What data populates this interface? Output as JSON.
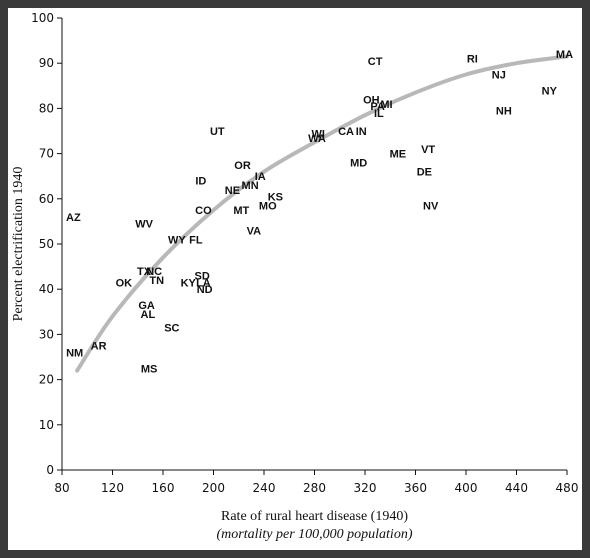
{
  "chart_data": {
    "type": "scatter",
    "xlabel": "Rate of rural heart disease (1940)",
    "xlabel_sub": "(mortality per 100,000 population)",
    "ylabel": "Percent electrification 1940",
    "xlim": [
      80,
      480
    ],
    "ylim": [
      0,
      100
    ],
    "x_ticks": [
      80,
      120,
      160,
      200,
      240,
      280,
      320,
      360,
      400,
      440,
      480
    ],
    "y_ticks": [
      0,
      10,
      20,
      30,
      40,
      50,
      60,
      70,
      80,
      90,
      100
    ],
    "grid": false,
    "trend_color": "#b8b8b8",
    "trend_curve": [
      {
        "x": 92,
        "y": 22
      },
      {
        "x": 120,
        "y": 34
      },
      {
        "x": 160,
        "y": 47
      },
      {
        "x": 200,
        "y": 57.5
      },
      {
        "x": 240,
        "y": 66
      },
      {
        "x": 280,
        "y": 72.5
      },
      {
        "x": 320,
        "y": 78.5
      },
      {
        "x": 360,
        "y": 83.5
      },
      {
        "x": 400,
        "y": 87.5
      },
      {
        "x": 440,
        "y": 90
      },
      {
        "x": 480,
        "y": 91.5
      }
    ],
    "points": [
      {
        "label": "AZ",
        "x": 89,
        "y": 56
      },
      {
        "label": "NM",
        "x": 90,
        "y": 26
      },
      {
        "label": "AR",
        "x": 109,
        "y": 27.5
      },
      {
        "label": "OK",
        "x": 129,
        "y": 41.5
      },
      {
        "label": "MS",
        "x": 149,
        "y": 22.5
      },
      {
        "label": "GA",
        "x": 147,
        "y": 36.5
      },
      {
        "label": "AL",
        "x": 148,
        "y": 34.5
      },
      {
        "label": "SC",
        "x": 167,
        "y": 31.5
      },
      {
        "label": "TX",
        "x": 145,
        "y": 44
      },
      {
        "label": "NC",
        "x": 153,
        "y": 44
      },
      {
        "label": "TN",
        "x": 155,
        "y": 42
      },
      {
        "label": "WV",
        "x": 145,
        "y": 54.5
      },
      {
        "label": "WY",
        "x": 171,
        "y": 51
      },
      {
        "label": "FL",
        "x": 186,
        "y": 51
      },
      {
        "label": "KY",
        "x": 180,
        "y": 41.5
      },
      {
        "label": "LA",
        "x": 192,
        "y": 41.5
      },
      {
        "label": "SD",
        "x": 191,
        "y": 43
      },
      {
        "label": "ND",
        "x": 193,
        "y": 40
      },
      {
        "label": "CO",
        "x": 192,
        "y": 57.5
      },
      {
        "label": "ID",
        "x": 190,
        "y": 64
      },
      {
        "label": "UT",
        "x": 203,
        "y": 75
      },
      {
        "label": "NE",
        "x": 215,
        "y": 62
      },
      {
        "label": "MT",
        "x": 222,
        "y": 57.5
      },
      {
        "label": "VA",
        "x": 232,
        "y": 53
      },
      {
        "label": "OR",
        "x": 223,
        "y": 67.5
      },
      {
        "label": "MN",
        "x": 229,
        "y": 63
      },
      {
        "label": "IA",
        "x": 237,
        "y": 65
      },
      {
        "label": "MO",
        "x": 243,
        "y": 58.5
      },
      {
        "label": "KS",
        "x": 249,
        "y": 60.5
      },
      {
        "label": "WI",
        "x": 283,
        "y": 74.5
      },
      {
        "label": "WA",
        "x": 282,
        "y": 73.5
      },
      {
        "label": "CA",
        "x": 305,
        "y": 75
      },
      {
        "label": "IN",
        "x": 317,
        "y": 75
      },
      {
        "label": "MD",
        "x": 315,
        "y": 68
      },
      {
        "label": "OH",
        "x": 325,
        "y": 82
      },
      {
        "label": "PA",
        "x": 330,
        "y": 80.5
      },
      {
        "label": "MI",
        "x": 337,
        "y": 81
      },
      {
        "label": "IL",
        "x": 331,
        "y": 79
      },
      {
        "label": "CT",
        "x": 328,
        "y": 90.5
      },
      {
        "label": "ME",
        "x": 346,
        "y": 70
      },
      {
        "label": "VT",
        "x": 370,
        "y": 71
      },
      {
        "label": "DE",
        "x": 367,
        "y": 66
      },
      {
        "label": "NV",
        "x": 372,
        "y": 58.5
      },
      {
        "label": "RI",
        "x": 405,
        "y": 91
      },
      {
        "label": "NJ",
        "x": 426,
        "y": 87.5
      },
      {
        "label": "NH",
        "x": 430,
        "y": 79.5
      },
      {
        "label": "MA",
        "x": 478,
        "y": 92
      },
      {
        "label": "NY",
        "x": 466,
        "y": 84
      }
    ]
  }
}
